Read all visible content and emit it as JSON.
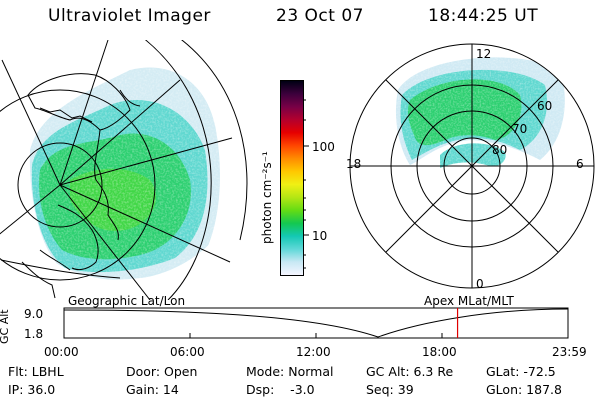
{
  "header": {
    "title": "Ultraviolet Imager",
    "date": "23 Oct 07",
    "time": "18:44:25 UT"
  },
  "colorbar": {
    "label": "photon cm⁻²s⁻¹",
    "ticks": [
      "100",
      "10"
    ],
    "colors": [
      "#f5f5ff",
      "#c8e8f4",
      "#5fd8d8",
      "#14c8b4",
      "#14c850",
      "#64dc14",
      "#b4e614",
      "#f0f014",
      "#ffc800",
      "#ff8c00",
      "#ff4600",
      "#e60000",
      "#b4002d",
      "#780046",
      "#3c003c",
      "#000014"
    ]
  },
  "polar_labels": {
    "noon": "12",
    "midnight": "0",
    "dusk": "18",
    "dawn": "6",
    "lat60": "60",
    "lat70": "70",
    "lat80": "80"
  },
  "timeline": {
    "left_label": "Geographic Lat/Lon",
    "right_label": "Apex MLat/MLT",
    "axis_label": "GC Alt",
    "y_max": "9.0",
    "y_min": "1.8",
    "ticks": [
      "00:00",
      "06:00",
      "12:00",
      "18:00",
      "23:59"
    ],
    "current_time_fraction": 0.7809,
    "accent": "#e00000"
  },
  "info": {
    "filter": "Flt: LBHL",
    "ip": "IP: 36.0",
    "door": "Door: Open",
    "gain": "Gain: 14",
    "mode": "Mode: Normal",
    "dsp": "Dsp:    -3.0",
    "gc_alt": "GC Alt: 6.3 Re",
    "seq": "Seq: 39",
    "glat": "GLat: -72.5",
    "glon": "GLon: 187.8"
  }
}
